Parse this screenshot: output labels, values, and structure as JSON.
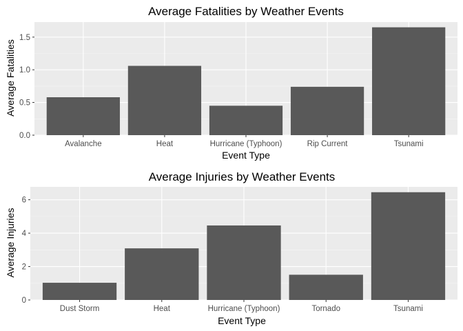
{
  "colors": {
    "panel_bg": "#ebebeb",
    "grid_major": "#ffffff",
    "grid_minor": "#f5f5f5",
    "bar_fill": "#595959",
    "tick_text": "#4d4d4d",
    "title_text": "#000000"
  },
  "chart_data": [
    {
      "type": "bar",
      "title": "Average Fatalities by Weather Events",
      "xlabel": "Event Type",
      "ylabel": "Average Fatalities",
      "categories": [
        "Avalanche",
        "Heat",
        "Hurricane (Typhoon)",
        "Rip Current",
        "Tsunami"
      ],
      "values": [
        0.58,
        1.06,
        0.45,
        0.74,
        1.65
      ],
      "ylim": [
        0,
        1.73
      ],
      "yticks": [
        0,
        0.5,
        1,
        1.5
      ],
      "ytick_labels": [
        "0.0",
        "0.5",
        "1.0",
        "1.5"
      ],
      "grid": true
    },
    {
      "type": "bar",
      "title": "Average Injuries by Weather Events",
      "xlabel": "Event Type",
      "ylabel": "Average Injuries",
      "categories": [
        "Dust Storm",
        "Heat",
        "Hurricane (Typhoon)",
        "Tornado",
        "Tsunami"
      ],
      "values": [
        1.03,
        3.09,
        4.46,
        1.51,
        6.45
      ],
      "ylim": [
        0,
        6.77
      ],
      "yticks": [
        0,
        2,
        4,
        6
      ],
      "ytick_labels": [
        "0",
        "2",
        "4",
        "6"
      ],
      "grid": true
    }
  ]
}
